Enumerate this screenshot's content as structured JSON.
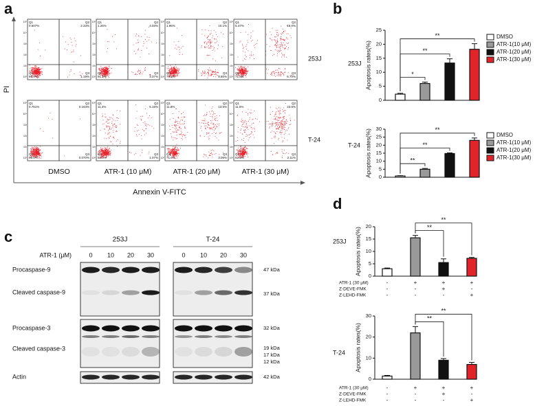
{
  "panel_labels": [
    "a",
    "b",
    "c",
    "d"
  ],
  "flow": {
    "y_label": "PI",
    "x_label": "Annexin V-FITC",
    "rows": [
      "253J",
      "T-24"
    ],
    "columns": [
      "DMSO",
      "ATR-1 (10 μM)",
      "ATR-1 (20 μM)",
      "ATR-1 (30 μM)"
    ],
    "quadrant_names": [
      "Q1",
      "Q2",
      "Q3",
      "Q4"
    ],
    "axis_ticks": [
      "10⁰",
      "10¹",
      "10²",
      "10³",
      "10⁴",
      "10⁵"
    ],
    "percentages": [
      [
        [
          "0.607%",
          "2.33%",
          "1.19%",
          "95.9%"
        ],
        [
          "1.26%",
          "4.03%",
          "3.37%",
          "91.3%"
        ],
        [
          "1.96%",
          "10.1%",
          "8.80%",
          "79.1%"
        ],
        [
          "5.47%",
          "16.0%",
          "6.70%",
          "71.8%"
        ]
      ],
      [
        [
          "0.751%",
          "0.163%",
          "0.070%",
          "99.0%"
        ],
        [
          "11.4%",
          "5.16%",
          "1.07%",
          "82.3%"
        ],
        [
          "11.8%",
          "13.5%",
          "3.06%",
          "71.6%"
        ],
        [
          "11.5%",
          "23.6%",
          "2.11%",
          "62.3%"
        ]
      ]
    ]
  },
  "blot": {
    "cell_lines": [
      "253J",
      "T-24"
    ],
    "dose_label": "ATR-1 (μM)",
    "doses": [
      "0",
      "10",
      "20",
      "30"
    ],
    "rows": [
      "Procaspase-9",
      "Cleaved caspase-9",
      "Procaspase-3",
      "Cleaved caspase-3",
      "Actin"
    ],
    "markers": [
      "47 kDa",
      "37 kDa",
      "32 kDa",
      "19 kDa",
      "17 kDa",
      "12 kDa",
      "42 kDa"
    ]
  },
  "chart_data": [
    {
      "type": "bar",
      "row_label": "253J",
      "y_label": "Apoptosis rates(%)",
      "ylim": [
        0,
        25
      ],
      "yticks": [
        0,
        5,
        10,
        15,
        20,
        25
      ],
      "series": [
        {
          "name": "DMSO",
          "color": "#ffffff",
          "values": [
            2.2
          ],
          "errors": [
            0.3
          ]
        },
        {
          "name": "ATR-1(10 μM)",
          "color": "#999999",
          "values": [
            6
          ],
          "errors": [
            0.5
          ]
        },
        {
          "name": "ATR-1(20 μM)",
          "color": "#111111",
          "values": [
            13.3
          ],
          "errors": [
            1.5
          ]
        },
        {
          "name": "ATR-1(30 μM)",
          "color": "#e0242a",
          "values": [
            18.2
          ],
          "errors": [
            2
          ]
        }
      ],
      "annotations": [
        "*",
        "**",
        "**"
      ]
    },
    {
      "type": "bar",
      "row_label": "T-24",
      "y_label": "Apoptosis rates(%)",
      "ylim": [
        0,
        30
      ],
      "yticks": [
        0,
        5,
        10,
        15,
        20,
        25,
        30
      ],
      "series": [
        {
          "name": "DMSO",
          "color": "#ffffff",
          "values": [
            0.8
          ],
          "errors": [
            0.2
          ]
        },
        {
          "name": "ATR-1(10 μM)",
          "color": "#999999",
          "values": [
            5
          ],
          "errors": [
            0.5
          ]
        },
        {
          "name": "ATR-1(20 μM)",
          "color": "#111111",
          "values": [
            14.8
          ],
          "errors": [
            0.4
          ]
        },
        {
          "name": "ATR-1(30 μM)",
          "color": "#e0242a",
          "values": [
            23
          ],
          "errors": [
            1.5
          ]
        }
      ],
      "annotations": [
        "**",
        "**",
        "**"
      ]
    },
    {
      "type": "bar",
      "row_label": "253J",
      "y_label": "Apoptosis rates(%)",
      "ylim": [
        0,
        20
      ],
      "yticks": [
        0,
        5,
        10,
        15,
        20
      ],
      "values": [
        3,
        15.5,
        5.5,
        7.2
      ],
      "errors": [
        0.3,
        1,
        1.5,
        0.4
      ],
      "colors": [
        "#ffffff",
        "#999999",
        "#111111",
        "#e0242a"
      ],
      "conditions": [
        {
          "label": "ATR-1 (30 μM)",
          "marks": [
            "-",
            "+",
            "+",
            "+"
          ]
        },
        {
          "label": "Z-DEVE-FMK",
          "marks": [
            "-",
            "-",
            "+",
            "-"
          ]
        },
        {
          "label": "Z-LEHD-FMK",
          "marks": [
            "-",
            "-",
            "-",
            "+"
          ]
        }
      ],
      "annotations": [
        "**",
        "**"
      ]
    },
    {
      "type": "bar",
      "row_label": "T-24",
      "y_label": "Apoptosis rates(%)",
      "ylim": [
        0,
        30
      ],
      "yticks": [
        0,
        10,
        20,
        30
      ],
      "values": [
        1.5,
        22,
        9,
        7
      ],
      "errors": [
        0.3,
        3,
        0.8,
        1
      ],
      "colors": [
        "#ffffff",
        "#999999",
        "#111111",
        "#e0242a"
      ],
      "conditions": [
        {
          "label": "ATR-1 (30 μM)",
          "marks": [
            "-",
            "+",
            "+",
            "+"
          ]
        },
        {
          "label": "Z-DEVE-FMK",
          "marks": [
            "-",
            "-",
            "+",
            "-"
          ]
        },
        {
          "label": "Z-LEHD-FMK",
          "marks": [
            "-",
            "-",
            "-",
            "+"
          ]
        }
      ],
      "annotations": [
        "**",
        "**"
      ]
    }
  ]
}
